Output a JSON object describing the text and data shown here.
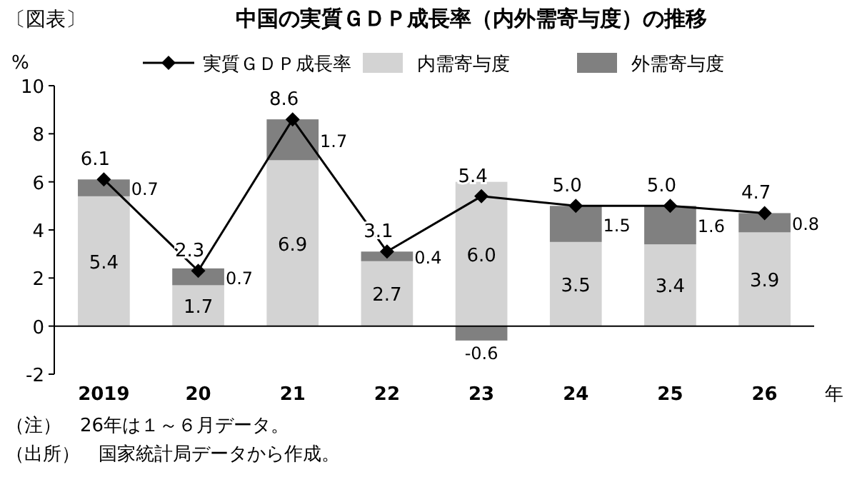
{
  "chart_data": {
    "type": "bar",
    "title": "中国の実質ＧＤＰ成長率（内外需寄与度）の推移",
    "ylabel": "%",
    "xlabel": "年",
    "annotations": [
      "〔図表〕",
      "（注）　26年は１～６月データ。",
      "（出所）　国家統計局データから作成。"
    ],
    "categories": [
      "2019",
      "20",
      "21",
      "22",
      "23",
      "24",
      "25",
      "26"
    ],
    "stacked": true,
    "series": [
      {
        "name": "実質ＧＤＰ成長率",
        "type": "line",
        "color": "#000000",
        "marker": "diamond",
        "values": [
          6.1,
          2.3,
          8.6,
          3.1,
          5.4,
          5.0,
          5.0,
          4.7
        ],
        "value_labels": [
          "6.1",
          "2.3",
          "8.6",
          "3.1",
          "5.4",
          "5.0",
          "5.0",
          "4.7"
        ]
      },
      {
        "name": "内需寄与度",
        "color": "#d3d3d3",
        "values": [
          5.4,
          1.7,
          6.9,
          2.7,
          6.0,
          3.5,
          3.4,
          3.9
        ],
        "value_labels": [
          "5.4",
          "1.7",
          "6.9",
          "2.7",
          "6.0",
          "3.5",
          "3.4",
          "3.9"
        ]
      },
      {
        "name": "外需寄与度",
        "color": "#808080",
        "values": [
          0.7,
          0.7,
          1.7,
          0.4,
          -0.6,
          1.5,
          1.6,
          0.8
        ],
        "value_labels": [
          "0.7",
          "0.7",
          "1.7",
          "0.4",
          "-0.6",
          "1.5",
          "1.6",
          "0.8"
        ]
      }
    ],
    "ylim": [
      -2,
      10
    ],
    "yticks": [
      -2,
      0,
      2,
      4,
      6,
      8,
      10
    ],
    "legend": "top"
  }
}
